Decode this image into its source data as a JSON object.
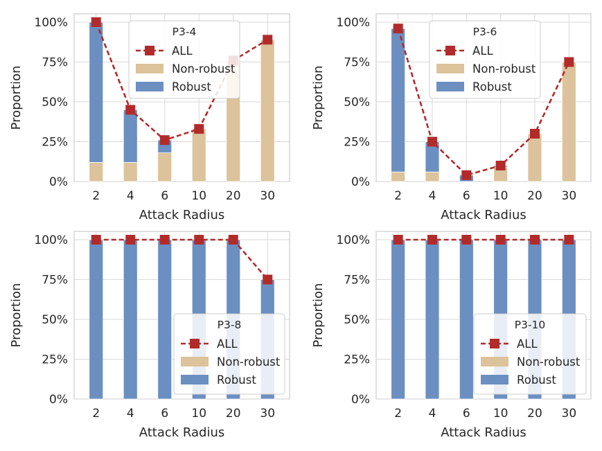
{
  "colors": {
    "robust": "#6b8fc1",
    "nonrobust": "#dcc39b",
    "all": "#b22b2b",
    "grid": "#d9d9d9",
    "frame": "#cccccc"
  },
  "chart_data": [
    {
      "type": "bar",
      "legend_title": "P3-4",
      "legend_placement": "top-center",
      "categories": [
        "2",
        "4",
        "6",
        "10",
        "20",
        "30"
      ],
      "series": [
        {
          "name": "ALL",
          "kind": "line",
          "values": [
            100,
            45,
            26,
            33,
            76,
            89
          ]
        },
        {
          "name": "Non-robust",
          "kind": "bar",
          "values": [
            12,
            12,
            18,
            33,
            76,
            89
          ]
        },
        {
          "name": "Robust",
          "kind": "bar",
          "values": [
            88,
            33,
            8,
            0,
            0,
            0
          ]
        }
      ],
      "xlabel": "Attack Radius",
      "ylabel": "Proportion",
      "yticks": [
        "0%",
        "25%",
        "50%",
        "75%",
        "100%"
      ],
      "ylim": [
        0,
        100
      ],
      "grid": true
    },
    {
      "type": "bar",
      "legend_title": "P3-6",
      "legend_placement": "top-center",
      "categories": [
        "2",
        "4",
        "6",
        "10",
        "20",
        "30"
      ],
      "series": [
        {
          "name": "ALL",
          "kind": "line",
          "values": [
            96,
            25,
            4,
            10,
            30,
            75
          ]
        },
        {
          "name": "Non-robust",
          "kind": "bar",
          "values": [
            6,
            6,
            0,
            9,
            30,
            75
          ]
        },
        {
          "name": "Robust",
          "kind": "bar",
          "values": [
            90,
            19,
            4,
            1,
            0,
            0
          ]
        }
      ],
      "xlabel": "Attack Radius",
      "ylabel": "Proportion",
      "yticks": [
        "0%",
        "25%",
        "50%",
        "75%",
        "100%"
      ],
      "ylim": [
        0,
        100
      ],
      "grid": true
    },
    {
      "type": "bar",
      "legend_title": "P3-8",
      "legend_placement": "bottom-right",
      "categories": [
        "2",
        "4",
        "6",
        "10",
        "20",
        "30"
      ],
      "series": [
        {
          "name": "ALL",
          "kind": "line",
          "values": [
            100,
            100,
            100,
            100,
            100,
            75
          ]
        },
        {
          "name": "Non-robust",
          "kind": "bar",
          "values": [
            0,
            0,
            0,
            0,
            0,
            0
          ]
        },
        {
          "name": "Robust",
          "kind": "bar",
          "values": [
            100,
            100,
            100,
            100,
            100,
            75
          ]
        }
      ],
      "xlabel": "Attack Radius",
      "ylabel": "Proportion",
      "yticks": [
        "0%",
        "25%",
        "50%",
        "75%",
        "100%"
      ],
      "ylim": [
        0,
        100
      ],
      "grid": true
    },
    {
      "type": "bar",
      "legend_title": "P3-10",
      "legend_placement": "bottom-right",
      "categories": [
        "2",
        "4",
        "6",
        "10",
        "20",
        "30"
      ],
      "series": [
        {
          "name": "ALL",
          "kind": "line",
          "values": [
            100,
            100,
            100,
            100,
            100,
            100
          ]
        },
        {
          "name": "Non-robust",
          "kind": "bar",
          "values": [
            0,
            0,
            0,
            0,
            0,
            0
          ]
        },
        {
          "name": "Robust",
          "kind": "bar",
          "values": [
            100,
            100,
            100,
            100,
            100,
            100
          ]
        }
      ],
      "xlabel": "Attack Radius",
      "ylabel": "Proportion",
      "yticks": [
        "0%",
        "25%",
        "50%",
        "75%",
        "100%"
      ],
      "ylim": [
        0,
        100
      ],
      "grid": true
    }
  ]
}
